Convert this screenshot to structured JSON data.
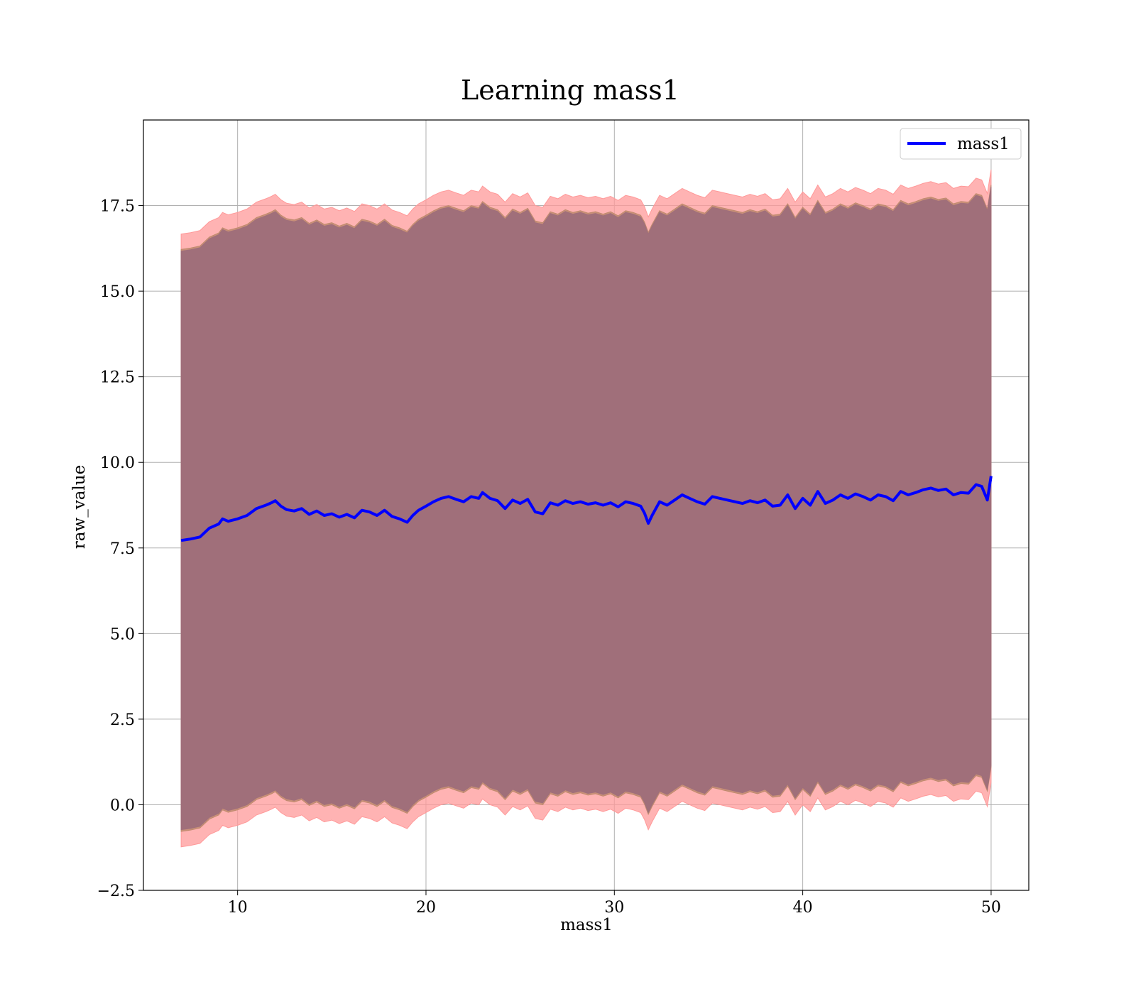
{
  "chart_data": {
    "type": "line",
    "title": "Learning mass1",
    "xlabel": "mass1",
    "ylabel": "raw_value",
    "xlim": [
      5,
      52
    ],
    "ylim": [
      -2.5,
      20
    ],
    "xticks": [
      10,
      20,
      30,
      40,
      50
    ],
    "yticks": [
      -2.5,
      0.0,
      2.5,
      5.0,
      7.5,
      10.0,
      12.5,
      15.0,
      17.5
    ],
    "xtick_labels": [
      "10",
      "20",
      "30",
      "40",
      "50"
    ],
    "ytick_labels": [
      "−2.5",
      "0.0",
      "2.5",
      "5.0",
      "7.5",
      "10.0",
      "12.5",
      "15.0",
      "17.5"
    ],
    "grid": true,
    "legend": {
      "placement": "top-right",
      "entries": [
        "mass1"
      ]
    },
    "colors": {
      "line": "#0000ff",
      "band_outer": "#ff9999",
      "band_middle": "#c08a6e",
      "band_inner": "#a06f7a"
    },
    "bands": [
      {
        "name": "outer",
        "half_width": 8.95
      },
      {
        "name": "middle",
        "half_width": 8.5
      },
      {
        "name": "inner",
        "half_width": 8.45
      }
    ],
    "series": [
      {
        "name": "mass1",
        "x": [
          7.0,
          7.5,
          8.0,
          8.5,
          9.0,
          9.2,
          9.5,
          10.0,
          10.5,
          11.0,
          11.5,
          11.8,
          12.0,
          12.3,
          12.6,
          13.0,
          13.4,
          13.8,
          14.2,
          14.6,
          15.0,
          15.4,
          15.8,
          16.2,
          16.6,
          17.0,
          17.4,
          17.8,
          18.2,
          18.6,
          19.0,
          19.3,
          19.6,
          20.0,
          20.4,
          20.8,
          21.2,
          21.6,
          22.0,
          22.4,
          22.8,
          23.0,
          23.4,
          23.8,
          24.2,
          24.6,
          25.0,
          25.4,
          25.8,
          26.2,
          26.6,
          27.0,
          27.4,
          27.8,
          28.2,
          28.6,
          29.0,
          29.4,
          29.8,
          30.2,
          30.6,
          31.0,
          31.4,
          31.6,
          31.8,
          32.0,
          32.4,
          32.8,
          33.2,
          33.6,
          34.0,
          34.4,
          34.8,
          35.2,
          35.6,
          36.0,
          36.4,
          36.8,
          37.2,
          37.6,
          38.0,
          38.4,
          38.8,
          39.2,
          39.6,
          40.0,
          40.4,
          40.8,
          41.2,
          41.6,
          42.0,
          42.4,
          42.8,
          43.2,
          43.6,
          44.0,
          44.4,
          44.8,
          45.2,
          45.6,
          46.0,
          46.4,
          46.8,
          47.2,
          47.6,
          48.0,
          48.4,
          48.8,
          49.2,
          49.5,
          49.8,
          50.0
        ],
        "y": [
          7.72,
          7.76,
          7.82,
          8.08,
          8.2,
          8.35,
          8.28,
          8.35,
          8.45,
          8.65,
          8.75,
          8.82,
          8.88,
          8.72,
          8.62,
          8.58,
          8.65,
          8.48,
          8.58,
          8.45,
          8.5,
          8.4,
          8.48,
          8.38,
          8.6,
          8.55,
          8.45,
          8.6,
          8.42,
          8.35,
          8.25,
          8.45,
          8.6,
          8.72,
          8.85,
          8.95,
          9.0,
          8.92,
          8.85,
          9.0,
          8.95,
          9.12,
          8.95,
          8.88,
          8.65,
          8.9,
          8.8,
          8.92,
          8.55,
          8.5,
          8.82,
          8.75,
          8.88,
          8.8,
          8.85,
          8.78,
          8.82,
          8.75,
          8.82,
          8.7,
          8.85,
          8.8,
          8.72,
          8.52,
          8.22,
          8.45,
          8.85,
          8.75,
          8.9,
          9.05,
          8.95,
          8.85,
          8.78,
          9.0,
          8.95,
          8.9,
          8.85,
          8.8,
          8.88,
          8.82,
          8.9,
          8.72,
          8.75,
          9.05,
          8.65,
          8.95,
          8.75,
          9.15,
          8.8,
          8.9,
          9.05,
          8.95,
          9.08,
          9.0,
          8.9,
          9.05,
          9.0,
          8.88,
          9.15,
          9.05,
          9.12,
          9.2,
          9.25,
          9.18,
          9.22,
          9.05,
          9.12,
          9.1,
          9.35,
          9.3,
          8.9,
          9.6
        ],
        "values_note_precision": 0.05
      }
    ]
  }
}
